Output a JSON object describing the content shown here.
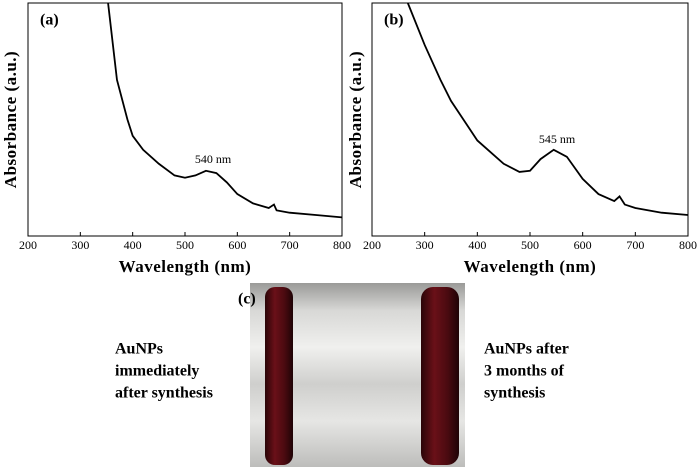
{
  "chart_data": [
    {
      "type": "line",
      "label": "(a)",
      "annotation": "540 nm",
      "xlabel": "Wavelength (nm)",
      "ylabel": "Absorbance (a.u.)",
      "x": [
        353,
        370,
        390,
        400,
        420,
        450,
        480,
        500,
        520,
        540,
        560,
        580,
        600,
        630,
        660,
        670,
        675,
        700,
        750,
        800
      ],
      "values": [
        1.0,
        0.67,
        0.5,
        0.43,
        0.37,
        0.31,
        0.26,
        0.25,
        0.26,
        0.28,
        0.27,
        0.23,
        0.18,
        0.14,
        0.12,
        0.135,
        0.11,
        0.1,
        0.09,
        0.08
      ],
      "color": "#000000",
      "xlim": [
        200,
        800
      ],
      "xticks": [
        200,
        300,
        400,
        500,
        600,
        700,
        800
      ],
      "ylim": [
        0,
        1
      ],
      "yticks": []
    },
    {
      "type": "line",
      "label": "(b)",
      "annotation": "545 nm",
      "xlabel": "Wavelength (nm)",
      "ylabel": "Absorbance (a.u.)",
      "x": [
        268,
        300,
        330,
        350,
        400,
        450,
        480,
        500,
        520,
        545,
        570,
        600,
        630,
        660,
        670,
        680,
        700,
        750,
        800
      ],
      "values": [
        1.0,
        0.82,
        0.67,
        0.58,
        0.41,
        0.31,
        0.275,
        0.28,
        0.33,
        0.37,
        0.34,
        0.245,
        0.18,
        0.15,
        0.17,
        0.135,
        0.12,
        0.1,
        0.09
      ],
      "color": "#000000",
      "xlim": [
        200,
        800
      ],
      "xticks": [
        200,
        300,
        400,
        500,
        600,
        700,
        800
      ],
      "ylim": [
        0,
        1
      ],
      "yticks": []
    }
  ],
  "photo": {
    "label": "(c)",
    "left_caption": [
      "AuNPs",
      "immediately",
      "after synthesis"
    ],
    "right_caption": [
      "AuNPs after",
      "3 months of",
      "synthesis"
    ]
  }
}
